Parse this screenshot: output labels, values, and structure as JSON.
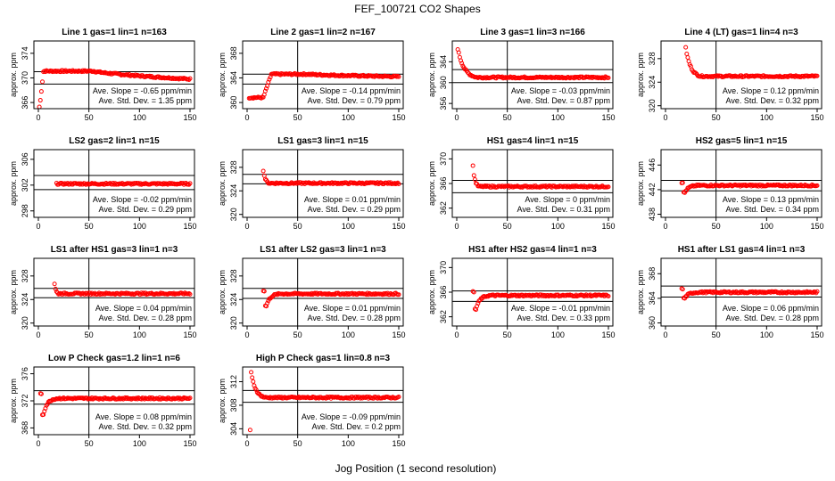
{
  "title": "FEF_100721  CO2 Shapes",
  "xlabel": "Jog Position (1 second resolution)",
  "ylabel": "approx. ppm",
  "slope_prefix": "Ave. Slope = ",
  "std_prefix": "Ave. Std. Dev. = ",
  "colors": {
    "points": "#ff0000",
    "axes": "#000000"
  },
  "chart_data": [
    {
      "type": "scatter",
      "title": "Line 1 gas=1 lin=1 n=163",
      "xlim": [
        0,
        150
      ],
      "xticks": [
        0,
        50,
        100,
        150
      ],
      "ylim": [
        365,
        376
      ],
      "yticks": [
        366,
        370,
        374
      ],
      "hlines": [
        369,
        371
      ],
      "vline": 50,
      "slope": "-0.65  ppm/min",
      "std": "1.35  ppm",
      "shape": {
        "kind": "rise_flat",
        "start": 364.8,
        "end": 371.0,
        "rise_x": [
          1,
          5
        ],
        "plateau": 371.1,
        "plateau_to": 55,
        "final": 369.8,
        "x0": 1,
        "x1": 150
      }
    },
    {
      "type": "scatter",
      "title": "Line 2 gas=1 lin=2 n=167",
      "xlim": [
        0,
        150
      ],
      "xticks": [
        0,
        50,
        100,
        150
      ],
      "ylim": [
        359,
        370
      ],
      "yticks": [
        360,
        364,
        368
      ],
      "hlines": [
        363,
        364.6
      ],
      "vline": 50,
      "slope": "-0.14  ppm/min",
      "std": "0.79  ppm",
      "shape": {
        "kind": "rise_flat",
        "start": 360.8,
        "end": 364.6,
        "rise_x": [
          16,
          24
        ],
        "plateau": 364.6,
        "plateau_to": 60,
        "final": 364.2,
        "x0": 2,
        "x1": 150
      }
    },
    {
      "type": "scatter",
      "title": "Line 3 gas=1 lin=3 n=166",
      "xlim": [
        0,
        150
      ],
      "xticks": [
        0,
        50,
        100,
        150
      ],
      "ylim": [
        355,
        368
      ],
      "yticks": [
        356,
        360,
        364
      ],
      "hlines": [
        360,
        362.5
      ],
      "vline": 50,
      "slope": "-0.03  ppm/min",
      "std": "0.87  ppm",
      "shape": {
        "kind": "spike_decay",
        "high": 366.5,
        "spike_to": 20,
        "end": 361.0,
        "x0": 1,
        "x1": 150
      }
    },
    {
      "type": "scatter",
      "title": "Line 4 (LT) gas=1 lin=4 n=3",
      "xlim": [
        0,
        150
      ],
      "xticks": [
        0,
        50,
        100,
        150
      ],
      "ylim": [
        319.5,
        331
      ],
      "yticks": [
        320,
        324,
        328
      ],
      "hlines": [],
      "vline": 50,
      "slope": "0.12  ppm/min",
      "std": "0.32  ppm",
      "shape": {
        "kind": "spike_decay",
        "high": 329.8,
        "spike_to": 35,
        "end": 325.0,
        "x0": 20,
        "x1": 150
      }
    },
    {
      "type": "scatter",
      "title": "LS2 gas=2 lin=1 n=15",
      "xlim": [
        0,
        150
      ],
      "xticks": [
        0,
        50,
        100,
        150
      ],
      "ylim": [
        297,
        307.5
      ],
      "yticks": [
        298,
        302,
        306
      ],
      "hlines": [
        301.3,
        303.5
      ],
      "vline": 50,
      "slope": "-0.02  ppm/min",
      "std": "0.29  ppm",
      "shape": {
        "kind": "flat",
        "level": 302.2,
        "x0": 18,
        "x1": 150
      }
    },
    {
      "type": "scatter",
      "title": "LS1 gas=3 lin=1 n=15",
      "xlim": [
        0,
        150
      ],
      "xticks": [
        0,
        50,
        100,
        150
      ],
      "ylim": [
        319.5,
        331
      ],
      "yticks": [
        320,
        324,
        328
      ],
      "hlines": [
        325.2,
        326.8
      ],
      "vline": 50,
      "slope": "0.01  ppm/min",
      "std": "0.29  ppm",
      "shape": {
        "kind": "spike_decay",
        "high": 327.5,
        "spike_to": 22,
        "end": 325.3,
        "x0": 16,
        "x1": 150
      }
    },
    {
      "type": "scatter",
      "title": "HS1 gas=4 lin=1 n=15",
      "xlim": [
        0,
        150
      ],
      "xticks": [
        0,
        50,
        100,
        150
      ],
      "ylim": [
        360.5,
        371.5
      ],
      "yticks": [
        362,
        366,
        370
      ],
      "hlines": [
        364.5,
        366.5
      ],
      "vline": 50,
      "slope": "0  ppm/min",
      "std": "0.31  ppm",
      "shape": {
        "kind": "spike_decay",
        "high": 368.8,
        "spike_to": 22,
        "end": 365.5,
        "x0": 16,
        "x1": 150
      }
    },
    {
      "type": "scatter",
      "title": "HS2 gas=5 lin=1 n=15",
      "xlim": [
        0,
        150
      ],
      "xticks": [
        0,
        50,
        100,
        150
      ],
      "ylim": [
        437.5,
        448.5
      ],
      "yticks": [
        438,
        442,
        446
      ],
      "hlines": [
        441.8,
        443.5
      ],
      "vline": 50,
      "slope": "0.13  ppm/min",
      "std": "0.34  ppm",
      "shape": {
        "kind": "dip_rise",
        "high": 443.2,
        "low": 441.5,
        "end": 442.7,
        "x0": 16,
        "x1": 150
      }
    },
    {
      "type": "scatter",
      "title": "LS1 after HS1 gas=3 lin=1 n=3",
      "xlim": [
        0,
        150
      ],
      "xticks": [
        0,
        50,
        100,
        150
      ],
      "ylim": [
        319.5,
        331
      ],
      "yticks": [
        320,
        324,
        328
      ],
      "hlines": [
        324.3,
        325.9
      ],
      "vline": 50,
      "slope": "0.04  ppm/min",
      "std": "0.28  ppm",
      "shape": {
        "kind": "spike_decay",
        "high": 326.7,
        "spike_to": 20,
        "end": 325.0,
        "x0": 16,
        "x1": 150
      }
    },
    {
      "type": "scatter",
      "title": "LS1 after LS2 gas=3 lin=1 n=3",
      "xlim": [
        0,
        150
      ],
      "xticks": [
        0,
        50,
        100,
        150
      ],
      "ylim": [
        319.5,
        331
      ],
      "yticks": [
        320,
        324,
        328
      ],
      "hlines": [
        324.2,
        325.9
      ],
      "vline": 50,
      "slope": "0.01  ppm/min",
      "std": "0.28  ppm",
      "shape": {
        "kind": "dip_rise",
        "high": 325.5,
        "low": 322.9,
        "end": 325.0,
        "x0": 16,
        "x1": 150
      }
    },
    {
      "type": "scatter",
      "title": "HS1 after HS2 gas=4 lin=1 n=3",
      "xlim": [
        0,
        150
      ],
      "xticks": [
        0,
        50,
        100,
        150
      ],
      "ylim": [
        360.5,
        371.5
      ],
      "yticks": [
        362,
        366,
        370
      ],
      "hlines": [
        364.5,
        366.2
      ],
      "vline": 50,
      "slope": "-0.01  ppm/min",
      "std": "0.33  ppm",
      "shape": {
        "kind": "dip_rise",
        "high": 366.0,
        "low": 363.2,
        "end": 365.5,
        "x0": 16,
        "x1": 150
      }
    },
    {
      "type": "scatter",
      "title": "HS1 after LS1 gas=4 lin=1 n=3",
      "xlim": [
        0,
        150
      ],
      "xticks": [
        0,
        50,
        100,
        150
      ],
      "ylim": [
        359.5,
        370.5
      ],
      "yticks": [
        360,
        364,
        368
      ],
      "hlines": [
        364.2,
        366.0
      ],
      "vline": 50,
      "slope": "0.06  ppm/min",
      "std": "0.28  ppm",
      "shape": {
        "kind": "dip_rise",
        "high": 365.5,
        "low": 364.0,
        "end": 365.0,
        "x0": 16,
        "x1": 150
      }
    },
    {
      "type": "scatter",
      "title": "Low P Check gas=1.2 lin=1 n=6",
      "xlim": [
        0,
        150
      ],
      "xticks": [
        0,
        50,
        100,
        150
      ],
      "ylim": [
        367,
        377
      ],
      "yticks": [
        368,
        372,
        376
      ],
      "hlines": [
        371.5,
        373.5
      ],
      "vline": 50,
      "slope": "0.08  ppm/min",
      "std": "0.32  ppm",
      "shape": {
        "kind": "dip_rise",
        "high": 373.0,
        "low": 370.0,
        "end": 372.4,
        "x0": 2,
        "x1": 150
      }
    },
    {
      "type": "scatter",
      "title": "High P Check gas=1 lin=0.8 n=3",
      "xlim": [
        0,
        150
      ],
      "xticks": [
        0,
        50,
        100,
        150
      ],
      "ylim": [
        303,
        314.5
      ],
      "yticks": [
        304,
        308,
        312
      ],
      "hlines": [
        308.5,
        310.5
      ],
      "vline": 50,
      "slope": "-0.09  ppm/min",
      "std": "0.2  ppm",
      "shape": {
        "kind": "spike_decay",
        "high": 313.5,
        "spike_to": 18,
        "end": 309.3,
        "x0": 4,
        "x1": 150,
        "outlier": [
          3,
          303.8
        ]
      }
    }
  ]
}
